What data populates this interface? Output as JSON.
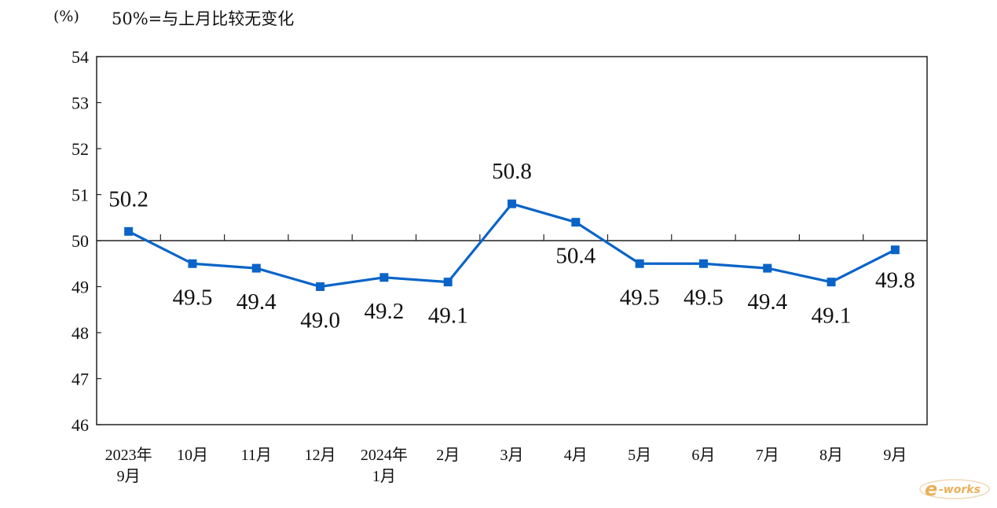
{
  "header": {
    "unit": "(%)",
    "note": "50%=与上月比较无变化"
  },
  "watermark": {
    "text": "e-works",
    "color": "#e8a23a"
  },
  "chart_data": {
    "type": "line",
    "title": "",
    "xlabel": "",
    "ylabel": "(%)",
    "categories": [
      [
        "2023年",
        "9月"
      ],
      [
        "10月"
      ],
      [
        "11月"
      ],
      [
        "12月"
      ],
      [
        "2024年",
        "1月"
      ],
      [
        "2月"
      ],
      [
        "3月"
      ],
      [
        "4月"
      ],
      [
        "5月"
      ],
      [
        "6月"
      ],
      [
        "7月"
      ],
      [
        "8月"
      ],
      [
        "9月"
      ]
    ],
    "series": [
      {
        "name": "",
        "values": [
          50.2,
          49.5,
          49.4,
          49.0,
          49.2,
          49.1,
          50.8,
          50.4,
          49.5,
          49.5,
          49.4,
          49.1,
          49.8
        ],
        "labels": [
          "50.2",
          "49.5",
          "49.4",
          "49.0",
          "49.2",
          "49.1",
          "50.8",
          "50.4",
          "49.5",
          "49.5",
          "49.4",
          "49.1",
          "49.8"
        ],
        "color": "#0a64c8"
      }
    ],
    "ylim": [
      46,
      54
    ],
    "yticks": [
      46,
      47,
      48,
      49,
      50,
      51,
      52,
      53,
      54
    ],
    "reference_line": 50,
    "grid": false,
    "legend": "none"
  }
}
